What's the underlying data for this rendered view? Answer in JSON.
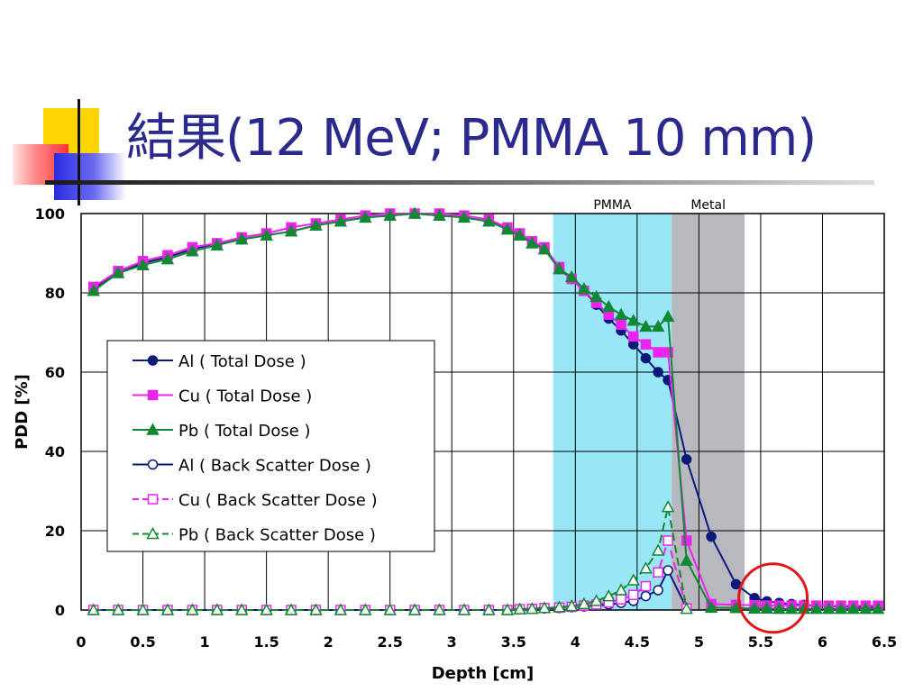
{
  "slide": {
    "title": "結果(12 MeV; PMMA 10 mm)"
  },
  "colors": {
    "title": "#2a2a8e",
    "al": "#0b1a7a",
    "cu": "#ee22ee",
    "pb": "#118833",
    "pmma_band": "#99e6f7",
    "metal_band": "#b8b8bf",
    "circle": "#e01515"
  },
  "chart_data": {
    "type": "line",
    "xlabel": "Depth [cm]",
    "ylabel": "PDD [%]",
    "xlim": [
      0,
      6.5
    ],
    "ylim": [
      0,
      100
    ],
    "xticks": [
      "0",
      "0.5",
      "1",
      "1.5",
      "2",
      "2.5",
      "3",
      "3.5",
      "4",
      "4.5",
      "5",
      "5.5",
      "6",
      "6.5"
    ],
    "yticks": [
      "0",
      "20",
      "40",
      "60",
      "80",
      "100"
    ],
    "grid": true,
    "legend_position": "left-middle",
    "regions": [
      {
        "label": "PMMA",
        "x0": 3.82,
        "x1": 4.78
      },
      {
        "label": "Metal",
        "x0": 4.78,
        "x1": 5.37
      }
    ],
    "highlight_circle": {
      "x": 5.6,
      "y": 3
    },
    "series": [
      {
        "name": "Al ( Total Dose )",
        "marker": "circle-filled",
        "dash": "solid",
        "x": [
          0.1,
          0.3,
          0.5,
          0.7,
          0.9,
          1.1,
          1.3,
          1.5,
          1.7,
          1.9,
          2.1,
          2.3,
          2.5,
          2.7,
          2.9,
          3.1,
          3.3,
          3.45,
          3.55,
          3.65,
          3.75,
          3.87,
          3.97,
          4.07,
          4.17,
          4.27,
          4.37,
          4.47,
          4.57,
          4.67,
          4.75,
          4.9,
          5.1,
          5.3,
          5.45,
          5.55,
          5.65,
          5.75,
          5.85,
          5.95,
          6.05,
          6.15,
          6.25,
          6.35,
          6.45
        ],
        "y": [
          81,
          85,
          87.5,
          89,
          91,
          92.5,
          93.5,
          94.5,
          95.5,
          97,
          98,
          99,
          99.5,
          100,
          99.5,
          99,
          98,
          96.5,
          95,
          93,
          91,
          86,
          83.5,
          80.5,
          77,
          73.5,
          70.5,
          67,
          63.5,
          60,
          58,
          38,
          18.5,
          6.5,
          3,
          2.2,
          1.8,
          1.5,
          1.3,
          1.1,
          1.0,
          0.9,
          0.8,
          0.7,
          0.6
        ]
      },
      {
        "name": "Cu ( Total Dose )",
        "marker": "square-filled",
        "dash": "solid",
        "x": [
          0.1,
          0.3,
          0.5,
          0.7,
          0.9,
          1.1,
          1.3,
          1.5,
          1.7,
          1.9,
          2.1,
          2.3,
          2.5,
          2.7,
          2.9,
          3.1,
          3.3,
          3.45,
          3.55,
          3.65,
          3.75,
          3.87,
          3.97,
          4.07,
          4.17,
          4.27,
          4.37,
          4.47,
          4.57,
          4.67,
          4.75,
          4.9,
          5.1,
          5.3,
          5.45,
          5.55,
          5.65,
          5.75,
          5.85,
          5.95,
          6.05,
          6.15,
          6.25,
          6.35,
          6.45
        ],
        "y": [
          81.5,
          85.5,
          88,
          89.5,
          91.5,
          92.5,
          94,
          95,
          96.5,
          97.5,
          98.5,
          99.5,
          100,
          100,
          100,
          99.5,
          98.5,
          96.5,
          95,
          93,
          91.5,
          86.5,
          83.5,
          80.5,
          77.5,
          74.5,
          72,
          69,
          67,
          65,
          65,
          17.5,
          1.5,
          1.3,
          1.2,
          1.1,
          1.1,
          1.1,
          1.1,
          1.1,
          1.1,
          1.1,
          1.1,
          1.1,
          1.1
        ]
      },
      {
        "name": "Pb ( Total Dose )",
        "marker": "triangle-filled",
        "dash": "solid",
        "x": [
          0.1,
          0.3,
          0.5,
          0.7,
          0.9,
          1.1,
          1.3,
          1.5,
          1.7,
          1.9,
          2.1,
          2.3,
          2.5,
          2.7,
          2.9,
          3.1,
          3.3,
          3.45,
          3.55,
          3.65,
          3.75,
          3.87,
          3.97,
          4.07,
          4.17,
          4.27,
          4.37,
          4.47,
          4.57,
          4.67,
          4.75,
          4.9,
          5.1,
          5.3,
          5.45,
          5.55,
          5.65,
          5.75,
          5.85,
          5.95,
          6.05,
          6.15,
          6.25,
          6.35,
          6.45
        ],
        "y": [
          80.5,
          85,
          87,
          88.5,
          90.5,
          92,
          93.5,
          94.5,
          95.5,
          97,
          98,
          99,
          99.5,
          100,
          99.5,
          99,
          98,
          96,
          94.5,
          92.5,
          91,
          86,
          84,
          81,
          79,
          76.5,
          74.5,
          73,
          71.5,
          71.5,
          74,
          12.5,
          0.6,
          0.5,
          0.4,
          0.4,
          0.3,
          0.3,
          0.3,
          0.3,
          0.3,
          0.3,
          0.3,
          0.3,
          0.3
        ]
      },
      {
        "name": "Al ( Back Scatter Dose )",
        "marker": "circle-open",
        "dash": "solid",
        "x": [
          0.1,
          0.3,
          0.5,
          0.7,
          0.9,
          1.1,
          1.3,
          1.5,
          1.7,
          1.9,
          2.1,
          2.3,
          2.5,
          2.7,
          2.9,
          3.1,
          3.3,
          3.45,
          3.55,
          3.65,
          3.75,
          3.87,
          3.97,
          4.07,
          4.17,
          4.27,
          4.37,
          4.47,
          4.57,
          4.67,
          4.75,
          4.9
        ],
        "y": [
          0,
          0,
          0,
          0,
          0,
          0,
          0,
          0,
          0,
          0,
          0,
          0,
          0,
          0,
          0,
          0,
          0,
          0,
          0.2,
          0.3,
          0.4,
          0.5,
          0.7,
          0.9,
          1.1,
          1.4,
          1.8,
          2.3,
          3.5,
          5,
          10,
          0.5
        ]
      },
      {
        "name": "Cu ( Back Scatter Dose )",
        "marker": "square-open",
        "dash": "dash",
        "x": [
          0.1,
          0.3,
          0.5,
          0.7,
          0.9,
          1.1,
          1.3,
          1.5,
          1.7,
          1.9,
          2.1,
          2.3,
          2.5,
          2.7,
          2.9,
          3.1,
          3.3,
          3.45,
          3.55,
          3.65,
          3.75,
          3.87,
          3.97,
          4.07,
          4.17,
          4.27,
          4.37,
          4.47,
          4.57,
          4.67,
          4.75,
          4.9
        ],
        "y": [
          0,
          0,
          0,
          0,
          0,
          0,
          0,
          0,
          0,
          0,
          0,
          0,
          0,
          0,
          0,
          0,
          0,
          0,
          0.2,
          0.3,
          0.5,
          0.6,
          0.8,
          1.1,
          1.4,
          1.9,
          2.7,
          3.8,
          6,
          9.5,
          17.5,
          0.4
        ]
      },
      {
        "name": "Pb ( Back Scatter Dose )",
        "marker": "triangle-open",
        "dash": "dash",
        "x": [
          0.1,
          0.3,
          0.5,
          0.7,
          0.9,
          1.1,
          1.3,
          1.5,
          1.7,
          1.9,
          2.1,
          2.3,
          2.5,
          2.7,
          2.9,
          3.1,
          3.3,
          3.45,
          3.55,
          3.65,
          3.75,
          3.87,
          3.97,
          4.07,
          4.17,
          4.27,
          4.37,
          4.47,
          4.57,
          4.67,
          4.75,
          4.9
        ],
        "y": [
          0,
          0,
          0,
          0,
          0,
          0,
          0,
          0,
          0,
          0,
          0,
          0,
          0,
          0,
          0,
          0,
          0,
          0,
          0.2,
          0.3,
          0.5,
          0.7,
          1.0,
          1.5,
          2.3,
          3.5,
          5,
          7.5,
          10.5,
          15,
          26,
          0.3
        ]
      }
    ]
  }
}
